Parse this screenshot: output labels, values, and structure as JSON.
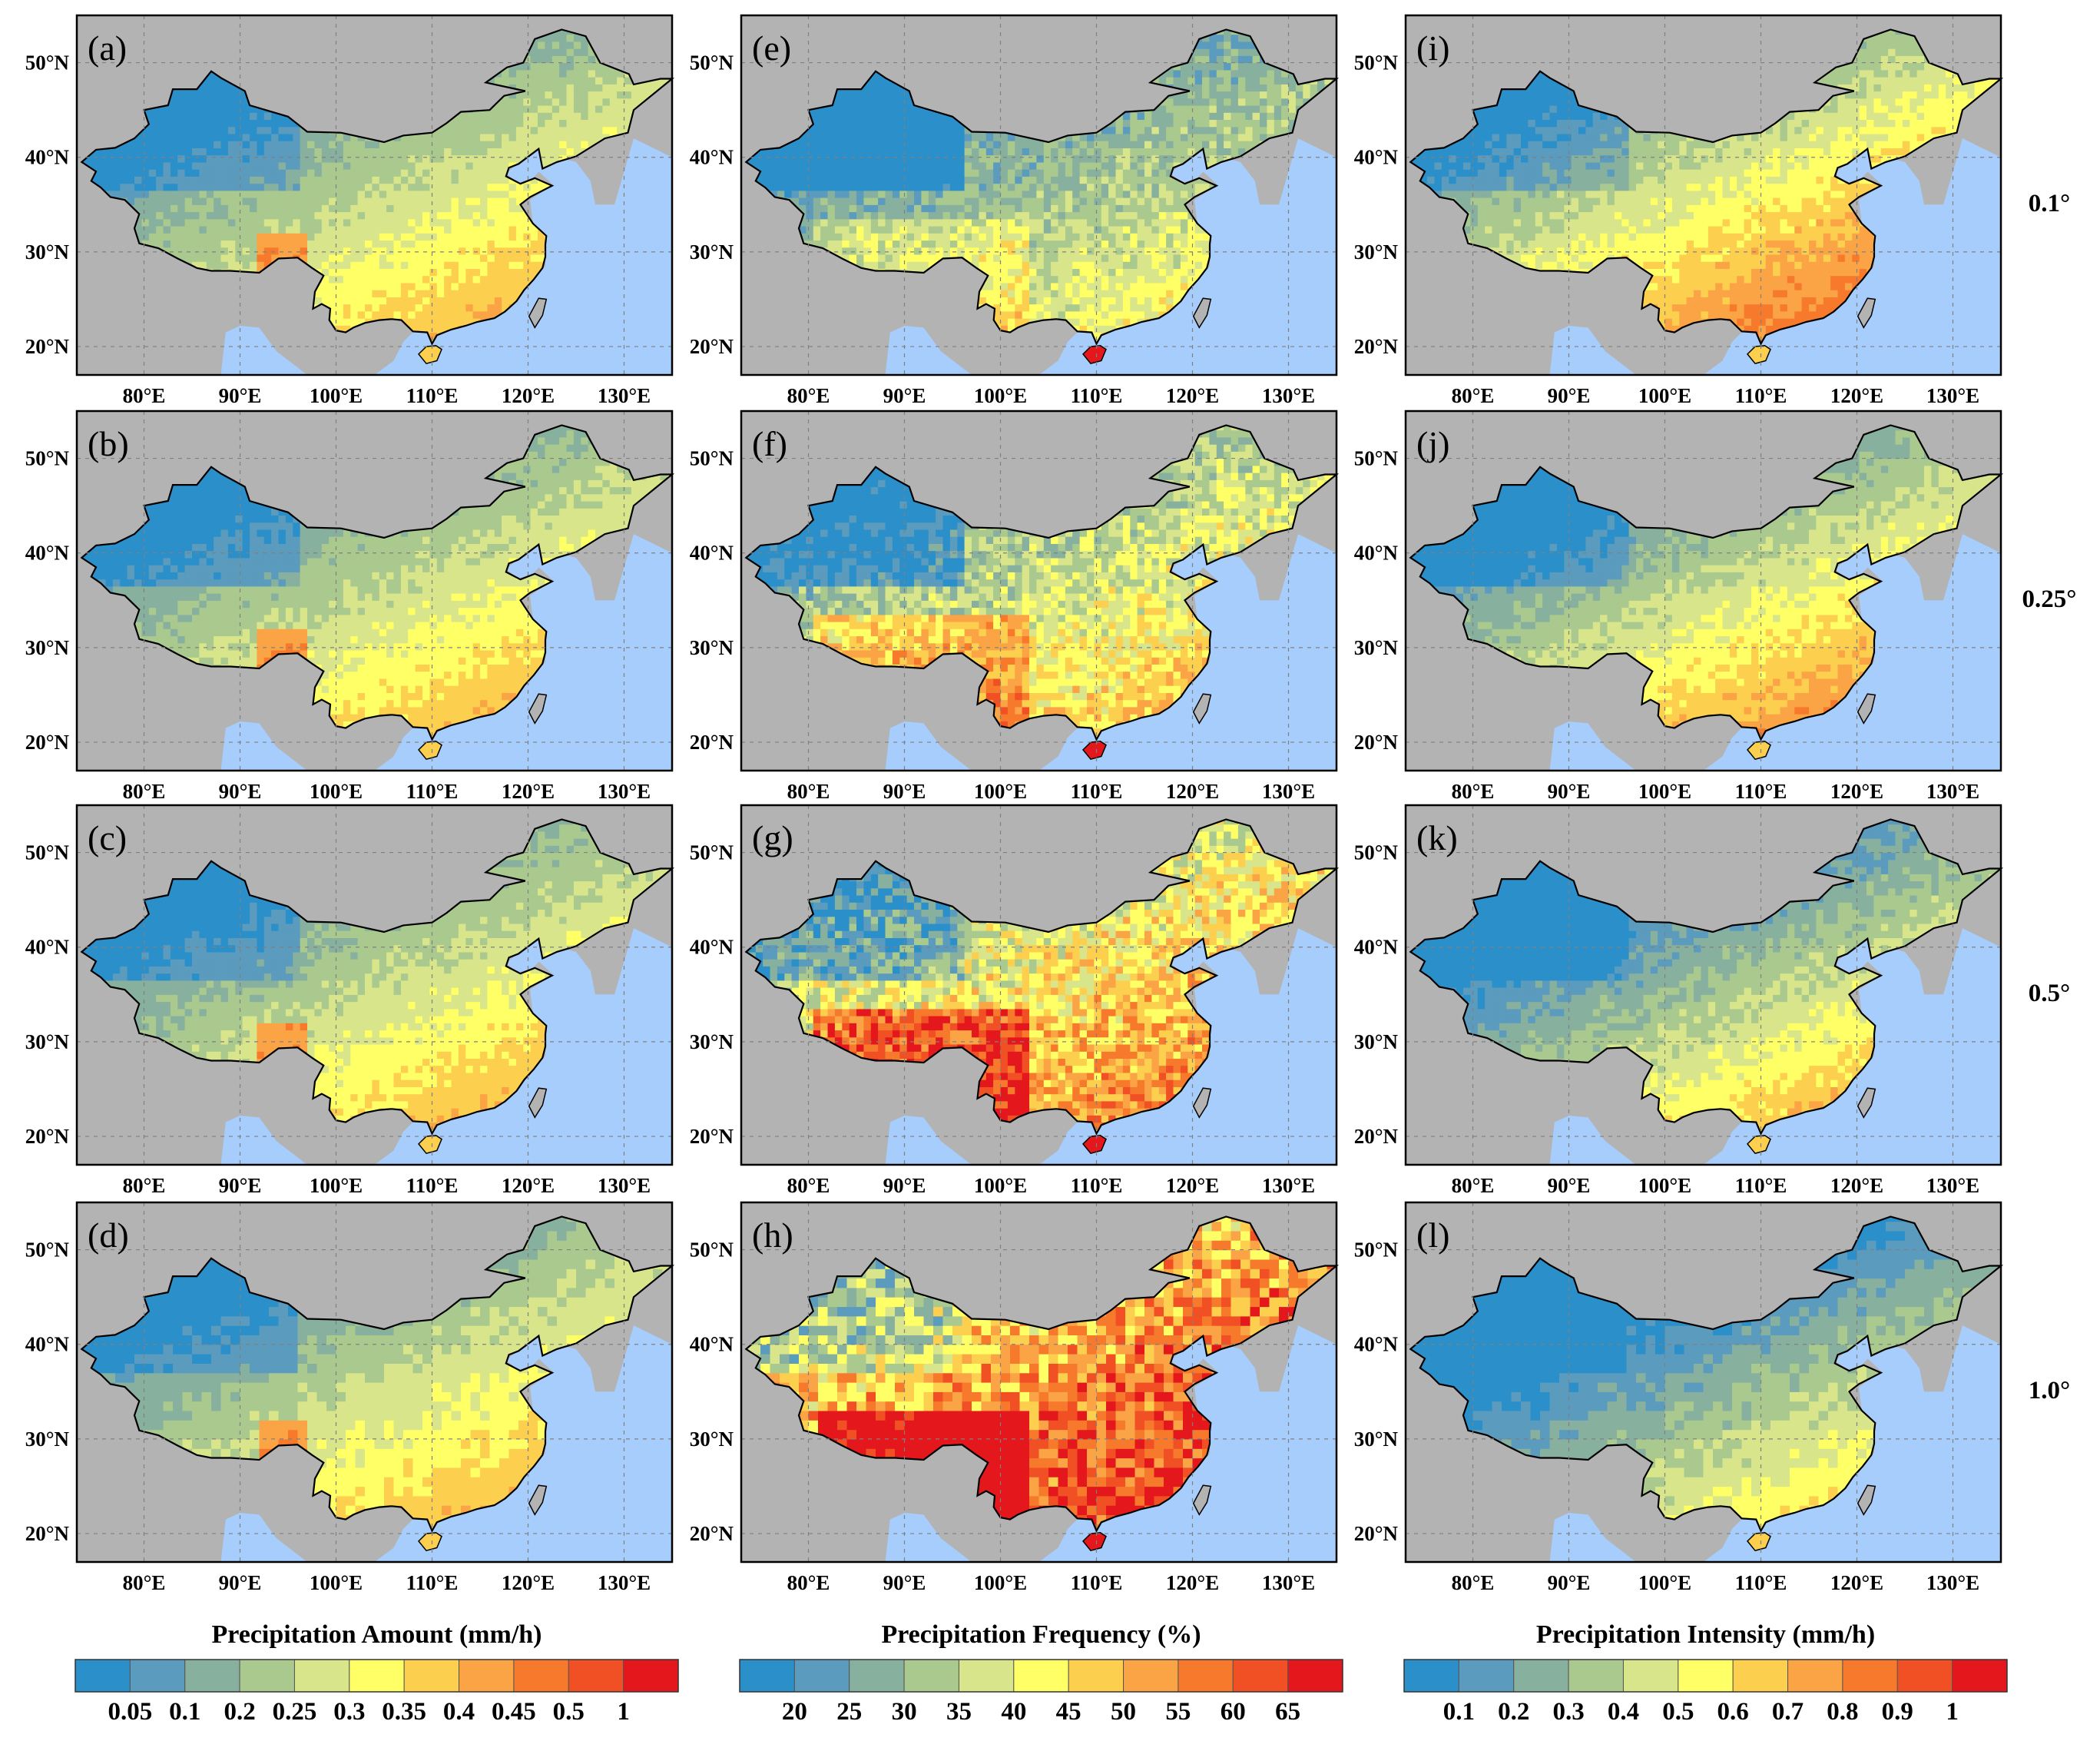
{
  "colors": {
    "land": "#b3b3b3",
    "ocean": "#a6cdfb",
    "frame": "#000000",
    "grid": "#808080"
  },
  "chart_data": {
    "type": "heatmap",
    "layout": "4 rows x 3 columns of maps of China",
    "rows": [
      "0.1°",
      "0.25°",
      "0.5°",
      "1.0°"
    ],
    "lon_ticks": [
      "80°E",
      "90°E",
      "100°E",
      "110°E",
      "120°E",
      "130°E"
    ],
    "lat_ticks": [
      "50°N",
      "40°N",
      "30°N",
      "20°N"
    ],
    "lon_range": [
      73,
      135
    ],
    "lat_range": [
      17,
      55
    ],
    "columns": [
      {
        "variable": "Precipitation Amount",
        "title": "Precipitation Amount (mm/h)",
        "panels": [
          "(a)",
          "(b)",
          "(c)",
          "(d)"
        ],
        "colorbar_colors": [
          "#2b8fca",
          "#5b9bbd",
          "#87b09e",
          "#aac98e",
          "#d9e58a",
          "#ffff66",
          "#fdcf4e",
          "#fba445",
          "#f77a2c",
          "#f15024",
          "#e4181c"
        ],
        "colorbar_ticks": [
          "0.05",
          "0.1",
          "0.2",
          "0.25",
          "0.3",
          "0.35",
          "0.4",
          "0.45",
          "0.5",
          "1"
        ]
      },
      {
        "variable": "Precipitation Frequency",
        "title": "Precipitation Frequency (%)",
        "panels": [
          "(e)",
          "(f)",
          "(g)",
          "(h)"
        ],
        "colorbar_colors": [
          "#2b8fca",
          "#5b9bbd",
          "#87b09e",
          "#aac98e",
          "#d9e58a",
          "#ffff66",
          "#fdcf4e",
          "#fba445",
          "#f77a2c",
          "#f15024",
          "#e4181c"
        ],
        "colorbar_ticks": [
          "20",
          "25",
          "30",
          "35",
          "40",
          "45",
          "50",
          "55",
          "60",
          "65"
        ]
      },
      {
        "variable": "Precipitation Intensity",
        "title": "Precipitation Intensity (mm/h)",
        "panels": [
          "(i)",
          "(j)",
          "(k)",
          "(l)"
        ],
        "colorbar_colors": [
          "#2b8fca",
          "#5b9bbd",
          "#87b09e",
          "#aac98e",
          "#d9e58a",
          "#ffff66",
          "#fdcf4e",
          "#fba445",
          "#f77a2c",
          "#f15024",
          "#e4181c"
        ],
        "colorbar_ticks": [
          "0.1",
          "0.2",
          "0.3",
          "0.4",
          "0.5",
          "0.6",
          "0.7",
          "0.8",
          "0.9",
          "1"
        ]
      }
    ]
  }
}
